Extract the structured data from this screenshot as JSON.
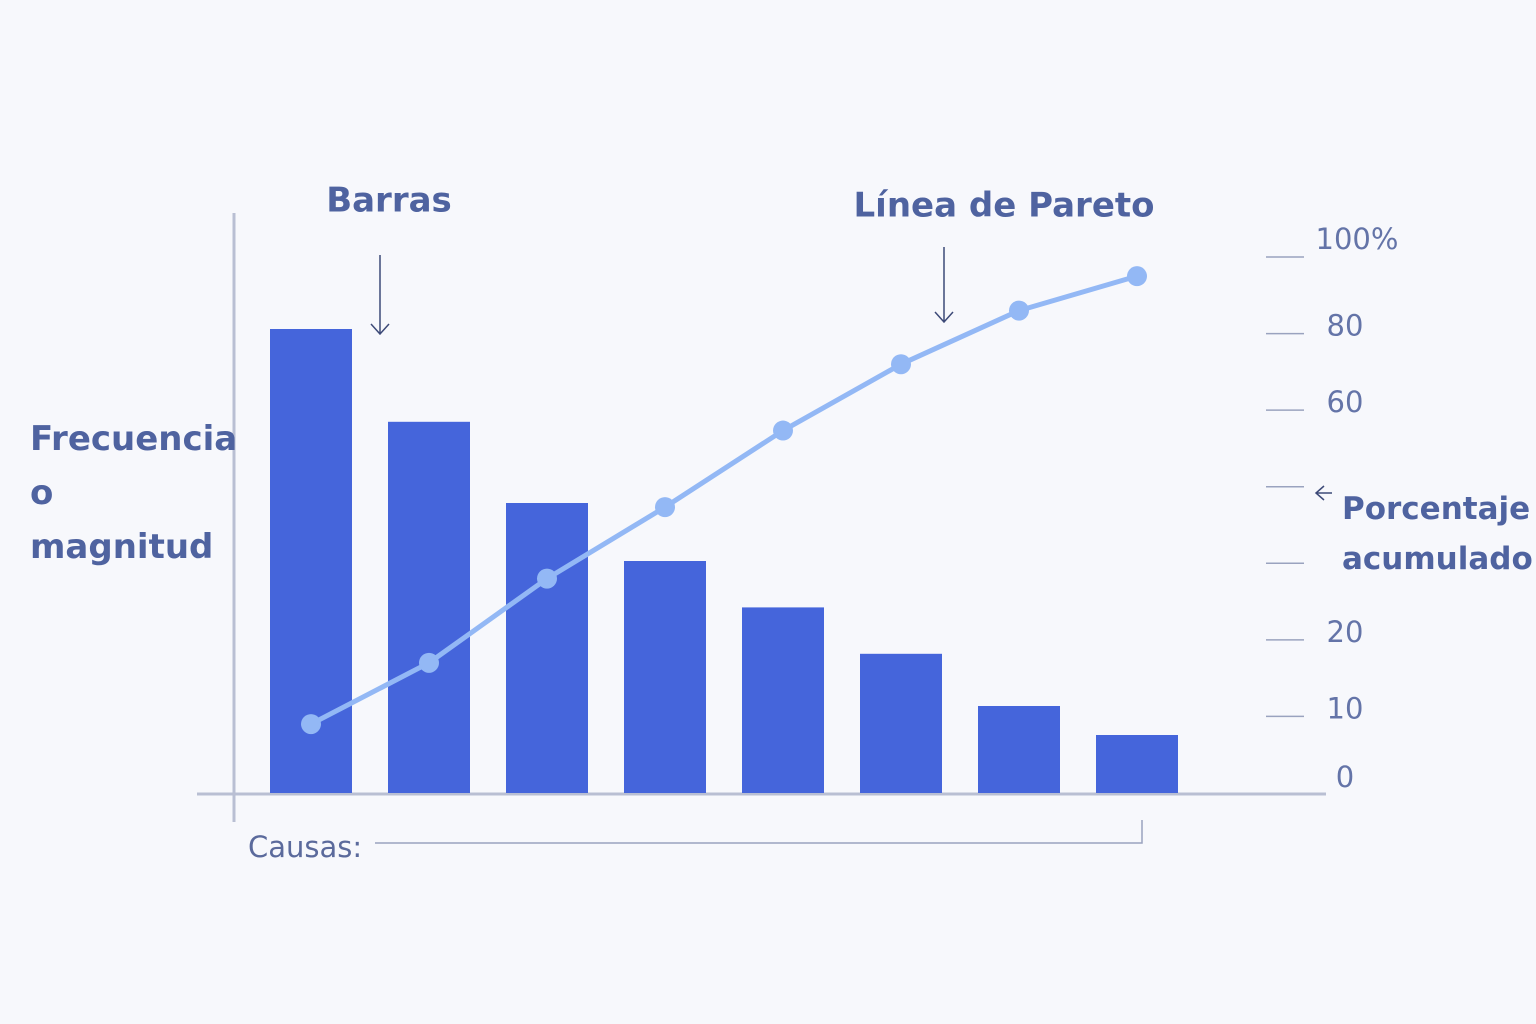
{
  "chart_data": {
    "type": "pareto",
    "annotations": {
      "bars": "Barras",
      "line": "Línea de Pareto"
    },
    "ylabel": "Frecuencia o magnitud",
    "y2label": "Porcentaje acumulado",
    "xlabel": "Causas:",
    "bars": {
      "values": [
        80,
        64,
        50,
        40,
        32,
        24,
        15,
        10
      ],
      "color": "#4565db"
    },
    "line": {
      "values": [
        9,
        17,
        28,
        41,
        56,
        72,
        86,
        95
      ],
      "color": "#93b8f5",
      "axis": "y2"
    },
    "ylim": [
      0,
      100
    ],
    "y2lim": [
      0,
      100
    ],
    "y2ticks": [
      0,
      10,
      20,
      {
        "value": 30,
        "label": null
      },
      {
        "value": 45,
        "label": null
      },
      60,
      80,
      {
        "value": 100,
        "label": "100%"
      }
    ]
  }
}
